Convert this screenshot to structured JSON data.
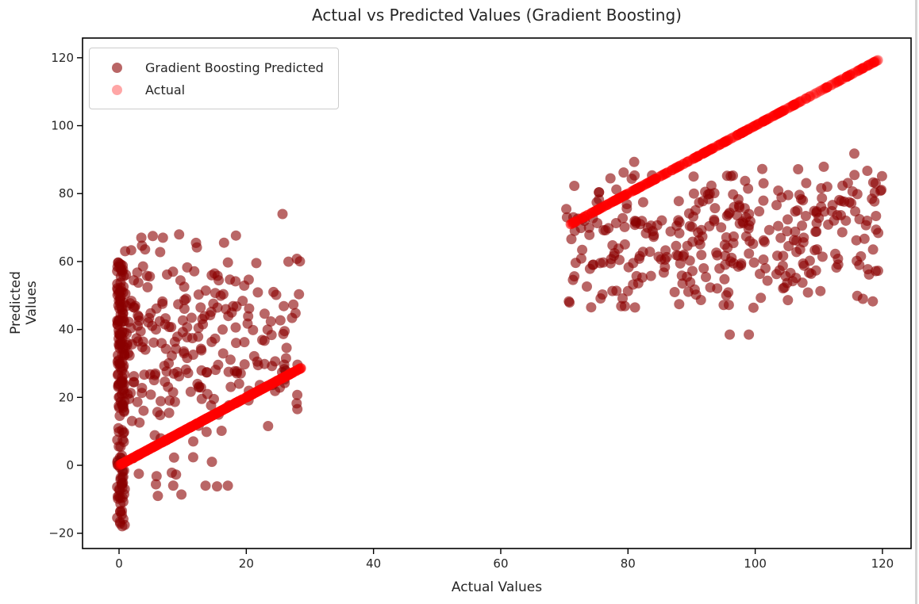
{
  "chart_data": {
    "type": "scatter",
    "title": "Actual vs Predicted Values (Gradient Boosting)",
    "xlabel": "Actual Values",
    "ylabel": "Predicted Values",
    "xlim": [
      -5.74,
      124.5
    ],
    "ylim": [
      -24.5,
      125.8
    ],
    "xticks": [
      0,
      20,
      40,
      60,
      80,
      100,
      120
    ],
    "yticks": [
      -20,
      0,
      20,
      40,
      60,
      80,
      100,
      120
    ],
    "grid": false,
    "legend": {
      "position": "upper left"
    },
    "series": [
      {
        "name": "Gradient Boosting Predicted",
        "color": "#8b0000",
        "alpha": 0.6,
        "marker_radius_px": 6.5,
        "clusters": [
          {
            "kind": "uniform-box",
            "n": 150,
            "x": [
              -0.3,
              0.9
            ],
            "y": [
              -18.5,
              61
            ]
          },
          {
            "kind": "power-spread",
            "n": 260,
            "x": [
              0.3,
              28.5
            ],
            "x_pow": 1.35,
            "y_mean": 36,
            "y_sd": 16,
            "y_clip": [
              -9,
              68
            ]
          },
          {
            "kind": "trend-cluster",
            "n": 330,
            "x": [
              70.3,
              120
            ],
            "y_intercept": 50,
            "y_slope": 0.18,
            "y_sd": 11,
            "y_clip": [
              46,
              94
            ]
          }
        ],
        "outliers": [
          [
            25.7,
            74
          ],
          [
            5.3,
            67.5
          ],
          [
            6.9,
            67
          ],
          [
            12.1,
            65.5
          ],
          [
            3.1,
            -2.5
          ],
          [
            5.9,
            -3.2
          ],
          [
            8.3,
            -2.2
          ],
          [
            5.8,
            -5.6
          ],
          [
            13.6,
            -6
          ],
          [
            15.4,
            -6.2
          ],
          [
            17.1,
            -6
          ],
          [
            9.8,
            -8.6
          ],
          [
            6.1,
            -9
          ],
          [
            96,
            38.5
          ],
          [
            99,
            38.5
          ]
        ]
      },
      {
        "name": "Actual",
        "color": "#ff0000",
        "alpha": 0.35,
        "marker_radius_px": 6.5,
        "identity_segments": [
          {
            "n": 450,
            "x": [
              0,
              28.6
            ]
          },
          {
            "n": 400,
            "x": [
              71,
              119.3
            ]
          }
        ]
      }
    ],
    "render": {
      "seed": 20240613
    }
  }
}
